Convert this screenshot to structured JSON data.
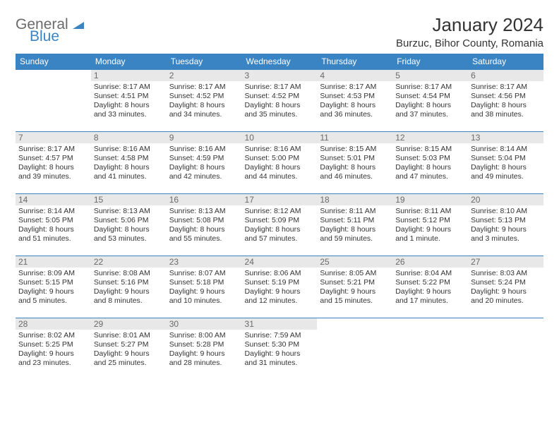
{
  "logo": {
    "part1": "General",
    "part2": "Blue"
  },
  "title": "January 2024",
  "location": "Burzuc, Bihor County, Romania",
  "colors": {
    "header_bg": "#3a84c4",
    "header_text": "#ffffff",
    "rule": "#3a84c4",
    "daynum_bg": "#e8e8e8",
    "daynum_text": "#6a6a6a",
    "body_text": "#333333",
    "logo_gray": "#6a6a6a",
    "logo_blue": "#3a84c4",
    "page_bg": "#ffffff"
  },
  "day_headers": [
    "Sunday",
    "Monday",
    "Tuesday",
    "Wednesday",
    "Thursday",
    "Friday",
    "Saturday"
  ],
  "weeks": [
    [
      {
        "n": "",
        "sr": "",
        "ss": "",
        "dl": ""
      },
      {
        "n": "1",
        "sr": "8:17 AM",
        "ss": "4:51 PM",
        "dl": "8 hours and 33 minutes."
      },
      {
        "n": "2",
        "sr": "8:17 AM",
        "ss": "4:52 PM",
        "dl": "8 hours and 34 minutes."
      },
      {
        "n": "3",
        "sr": "8:17 AM",
        "ss": "4:52 PM",
        "dl": "8 hours and 35 minutes."
      },
      {
        "n": "4",
        "sr": "8:17 AM",
        "ss": "4:53 PM",
        "dl": "8 hours and 36 minutes."
      },
      {
        "n": "5",
        "sr": "8:17 AM",
        "ss": "4:54 PM",
        "dl": "8 hours and 37 minutes."
      },
      {
        "n": "6",
        "sr": "8:17 AM",
        "ss": "4:56 PM",
        "dl": "8 hours and 38 minutes."
      }
    ],
    [
      {
        "n": "7",
        "sr": "8:17 AM",
        "ss": "4:57 PM",
        "dl": "8 hours and 39 minutes."
      },
      {
        "n": "8",
        "sr": "8:16 AM",
        "ss": "4:58 PM",
        "dl": "8 hours and 41 minutes."
      },
      {
        "n": "9",
        "sr": "8:16 AM",
        "ss": "4:59 PM",
        "dl": "8 hours and 42 minutes."
      },
      {
        "n": "10",
        "sr": "8:16 AM",
        "ss": "5:00 PM",
        "dl": "8 hours and 44 minutes."
      },
      {
        "n": "11",
        "sr": "8:15 AM",
        "ss": "5:01 PM",
        "dl": "8 hours and 46 minutes."
      },
      {
        "n": "12",
        "sr": "8:15 AM",
        "ss": "5:03 PM",
        "dl": "8 hours and 47 minutes."
      },
      {
        "n": "13",
        "sr": "8:14 AM",
        "ss": "5:04 PM",
        "dl": "8 hours and 49 minutes."
      }
    ],
    [
      {
        "n": "14",
        "sr": "8:14 AM",
        "ss": "5:05 PM",
        "dl": "8 hours and 51 minutes."
      },
      {
        "n": "15",
        "sr": "8:13 AM",
        "ss": "5:06 PM",
        "dl": "8 hours and 53 minutes."
      },
      {
        "n": "16",
        "sr": "8:13 AM",
        "ss": "5:08 PM",
        "dl": "8 hours and 55 minutes."
      },
      {
        "n": "17",
        "sr": "8:12 AM",
        "ss": "5:09 PM",
        "dl": "8 hours and 57 minutes."
      },
      {
        "n": "18",
        "sr": "8:11 AM",
        "ss": "5:11 PM",
        "dl": "8 hours and 59 minutes."
      },
      {
        "n": "19",
        "sr": "8:11 AM",
        "ss": "5:12 PM",
        "dl": "9 hours and 1 minute."
      },
      {
        "n": "20",
        "sr": "8:10 AM",
        "ss": "5:13 PM",
        "dl": "9 hours and 3 minutes."
      }
    ],
    [
      {
        "n": "21",
        "sr": "8:09 AM",
        "ss": "5:15 PM",
        "dl": "9 hours and 5 minutes."
      },
      {
        "n": "22",
        "sr": "8:08 AM",
        "ss": "5:16 PM",
        "dl": "9 hours and 8 minutes."
      },
      {
        "n": "23",
        "sr": "8:07 AM",
        "ss": "5:18 PM",
        "dl": "9 hours and 10 minutes."
      },
      {
        "n": "24",
        "sr": "8:06 AM",
        "ss": "5:19 PM",
        "dl": "9 hours and 12 minutes."
      },
      {
        "n": "25",
        "sr": "8:05 AM",
        "ss": "5:21 PM",
        "dl": "9 hours and 15 minutes."
      },
      {
        "n": "26",
        "sr": "8:04 AM",
        "ss": "5:22 PM",
        "dl": "9 hours and 17 minutes."
      },
      {
        "n": "27",
        "sr": "8:03 AM",
        "ss": "5:24 PM",
        "dl": "9 hours and 20 minutes."
      }
    ],
    [
      {
        "n": "28",
        "sr": "8:02 AM",
        "ss": "5:25 PM",
        "dl": "9 hours and 23 minutes."
      },
      {
        "n": "29",
        "sr": "8:01 AM",
        "ss": "5:27 PM",
        "dl": "9 hours and 25 minutes."
      },
      {
        "n": "30",
        "sr": "8:00 AM",
        "ss": "5:28 PM",
        "dl": "9 hours and 28 minutes."
      },
      {
        "n": "31",
        "sr": "7:59 AM",
        "ss": "5:30 PM",
        "dl": "9 hours and 31 minutes."
      },
      {
        "n": "",
        "sr": "",
        "ss": "",
        "dl": ""
      },
      {
        "n": "",
        "sr": "",
        "ss": "",
        "dl": ""
      },
      {
        "n": "",
        "sr": "",
        "ss": "",
        "dl": ""
      }
    ]
  ],
  "labels": {
    "sunrise": "Sunrise:",
    "sunset": "Sunset:",
    "daylight": "Daylight:"
  }
}
